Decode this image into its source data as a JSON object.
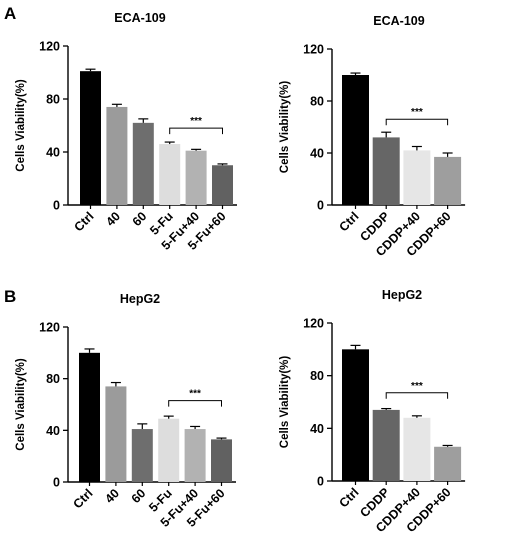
{
  "panel_labels": [
    "A",
    "B"
  ],
  "chart_data": [
    {
      "type": "bar",
      "panel": "A",
      "title": "ECA-109",
      "ylabel": "Cells Viability(%)",
      "xlabel": "",
      "ylim": [
        0,
        120
      ],
      "yticks": [
        0,
        40,
        80,
        120
      ],
      "categories": [
        "Ctrl",
        "40",
        "60",
        "5-Fu",
        "5-Fu+40",
        "5-Fu+60"
      ],
      "values": [
        101,
        74,
        62,
        46,
        41,
        30
      ],
      "errors": [
        1.5,
        2,
        3,
        1.5,
        1,
        1
      ],
      "colors": [
        "#000000",
        "#9b9b9b",
        "#6e6e6e",
        "#dddddd",
        "#b2b2b2",
        "#616161"
      ],
      "significance": {
        "from": 3,
        "to": 5,
        "label": "***",
        "y": 58
      }
    },
    {
      "type": "bar",
      "panel": "A",
      "title": "ECA-109",
      "ylabel": "Cells Viability(%)",
      "xlabel": "",
      "ylim": [
        0,
        120
      ],
      "yticks": [
        0,
        40,
        80,
        120
      ],
      "categories": [
        "Ctrl",
        "CDDP",
        "CDDP+40",
        "CDDP+60"
      ],
      "values": [
        100,
        52,
        42,
        37
      ],
      "errors": [
        1.5,
        4,
        3,
        3
      ],
      "colors": [
        "#000000",
        "#666666",
        "#e6e6e6",
        "#9e9e9e"
      ],
      "significance": {
        "from": 1,
        "to": 3,
        "label": "***",
        "y": 66
      }
    },
    {
      "type": "bar",
      "panel": "B",
      "title": "HepG2",
      "ylabel": "Cells Viability(%)",
      "xlabel": "",
      "ylim": [
        0,
        120
      ],
      "yticks": [
        0,
        40,
        80,
        120
      ],
      "categories": [
        "Ctrl",
        "40",
        "60",
        "5-Fu",
        "5-Fu+40",
        "5-Fu+60"
      ],
      "values": [
        100,
        74,
        41,
        49,
        41,
        33
      ],
      "errors": [
        3,
        3,
        4,
        2,
        2,
        1
      ],
      "colors": [
        "#000000",
        "#9b9b9b",
        "#6e6e6e",
        "#dddddd",
        "#b2b2b2",
        "#616161"
      ],
      "significance": {
        "from": 3,
        "to": 5,
        "label": "***",
        "y": 63
      }
    },
    {
      "type": "bar",
      "panel": "B",
      "title": "HepG2",
      "ylabel": "Cells Viability(%)",
      "xlabel": "",
      "ylim": [
        0,
        120
      ],
      "yticks": [
        0,
        40,
        80,
        120
      ],
      "categories": [
        "Ctrl",
        "CDDP",
        "CDDP+40",
        "CDDP+60"
      ],
      "values": [
        100,
        54,
        48,
        26
      ],
      "errors": [
        3,
        1,
        1.5,
        1
      ],
      "colors": [
        "#000000",
        "#666666",
        "#e6e6e6",
        "#9e9e9e"
      ],
      "significance": {
        "from": 1,
        "to": 3,
        "label": "***",
        "y": 67
      }
    }
  ]
}
